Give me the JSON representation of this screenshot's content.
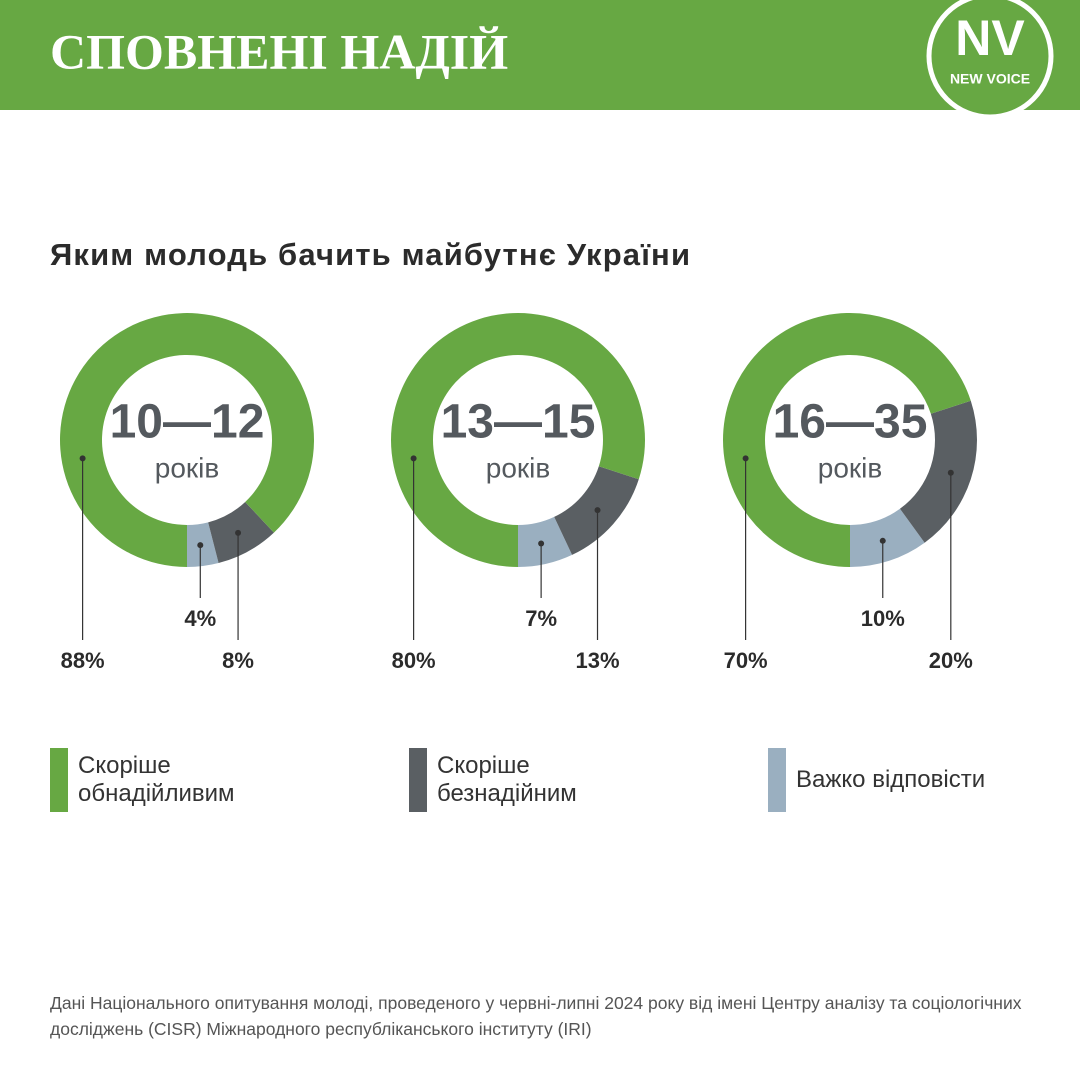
{
  "header": {
    "title": "СПОВНЕНІ НАДІЙ",
    "logo": "NV",
    "logo_subtitle": "NEW VOICE"
  },
  "chart_data": {
    "type": "donut",
    "title": "Яким молодь бачить майбутнє України",
    "categories": [
      "10—12",
      "13—15",
      "16—35"
    ],
    "category_unit": "років",
    "series": [
      {
        "name": "Скоріше обнадійливим",
        "color": "#67a843",
        "values": [
          88,
          80,
          70
        ],
        "value_labels": [
          "88%",
          "80%",
          "70%"
        ]
      },
      {
        "name": "Скоріше безнадійним",
        "color": "#5a5f63",
        "values": [
          8,
          13,
          20
        ],
        "value_labels": [
          "8%",
          "13%",
          "20%"
        ]
      },
      {
        "name": "Важко відповісти",
        "color": "#9aafc0",
        "values": [
          4,
          7,
          10
        ],
        "value_labels": [
          "4%",
          "7%",
          "10%"
        ]
      }
    ]
  },
  "footnote": "Дані Національного опитування молоді, проведеного у червні-липні 2024 року від імені Центру аналізу та соціологічних досліджень (CISR) Міжнародного республіканського інституту (IRI)"
}
